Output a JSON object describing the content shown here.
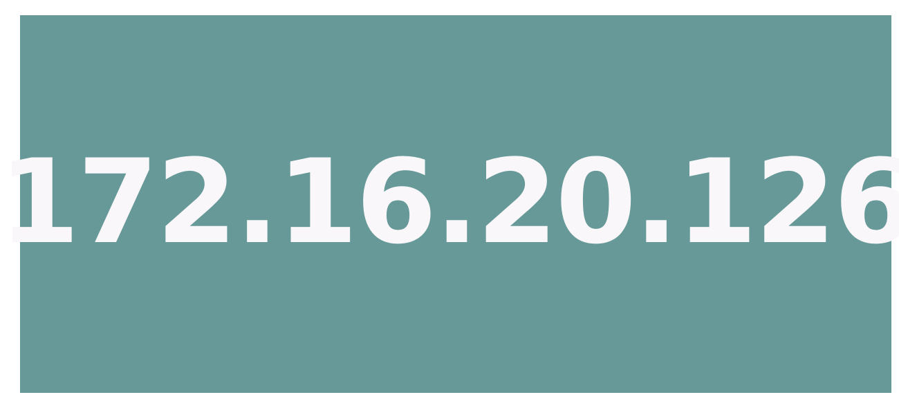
{
  "colors": {
    "page_background": "#ffffff",
    "panel_background": "#679999",
    "text": "#f9f7f9"
  },
  "display": {
    "ip_address": "172.16.20.126"
  }
}
